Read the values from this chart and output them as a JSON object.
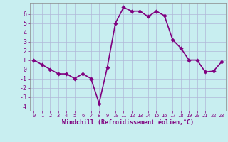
{
  "x": [
    0,
    1,
    2,
    3,
    4,
    5,
    6,
    7,
    8,
    9,
    10,
    11,
    12,
    13,
    14,
    15,
    16,
    17,
    18,
    19,
    20,
    21,
    22,
    23
  ],
  "y": [
    1.0,
    0.5,
    0.0,
    -0.5,
    -0.5,
    -1.0,
    -0.5,
    -1.0,
    -3.7,
    0.2,
    5.0,
    6.7,
    6.3,
    6.3,
    5.7,
    6.3,
    5.8,
    3.2,
    2.3,
    1.0,
    1.0,
    -0.3,
    -0.2,
    0.8
  ],
  "line_color": "#800080",
  "marker_color": "#800080",
  "bg_color": "#c8eef0",
  "grid_color": "#b0b8d8",
  "xlabel": "Windchill (Refroidissement éolien,°C)",
  "xlabel_color": "#800080",
  "xlim": [
    -0.5,
    23.5
  ],
  "ylim": [
    -4.5,
    7.2
  ],
  "yticks": [
    -4,
    -3,
    -2,
    -1,
    0,
    1,
    2,
    3,
    4,
    5,
    6
  ],
  "xtick_labels": [
    "0",
    "1",
    "2",
    "3",
    "4",
    "5",
    "6",
    "7",
    "8",
    "9",
    "10",
    "11",
    "12",
    "13",
    "14",
    "15",
    "16",
    "17",
    "18",
    "19",
    "20",
    "21",
    "22",
    "23"
  ],
  "tick_color": "#800080",
  "line_width": 1.2,
  "marker_size": 2.8,
  "font_family": "monospace"
}
